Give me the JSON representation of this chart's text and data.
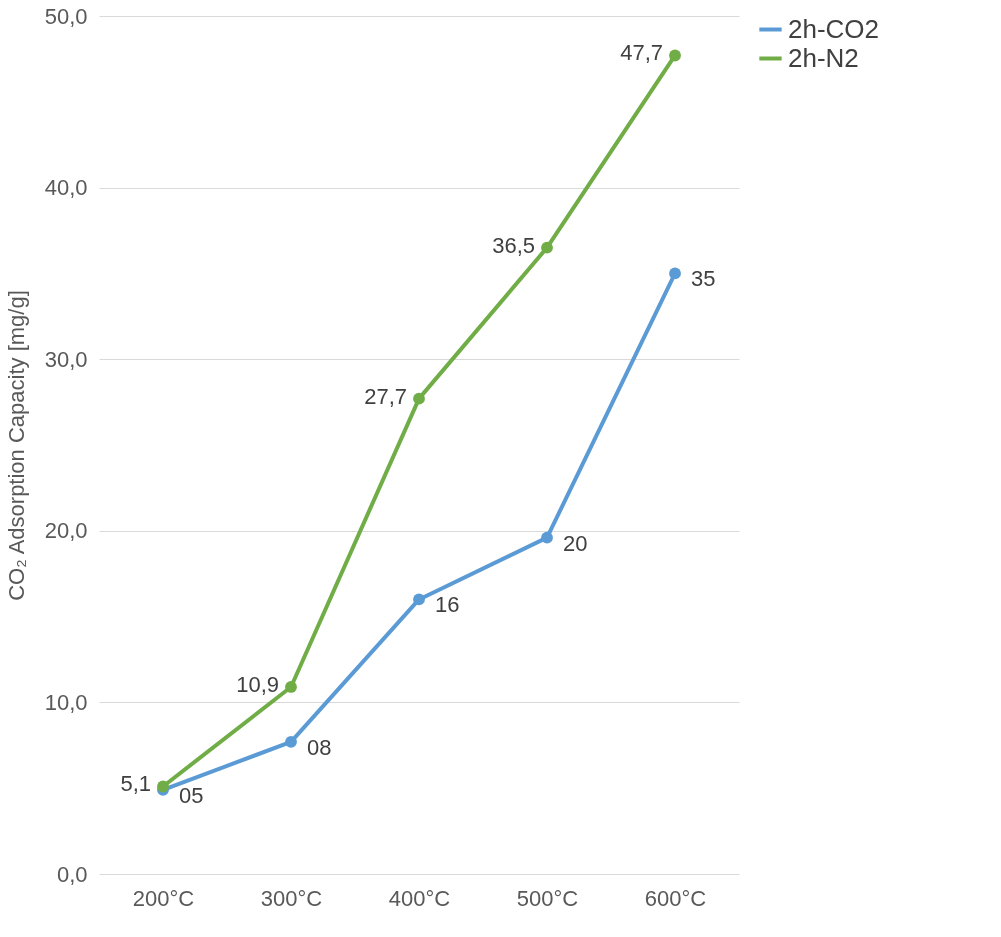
{
  "chart_data": {
    "type": "line",
    "ylabel": "CO₂ Adsorption Capacity [mg/g]",
    "categories": [
      "200°C",
      "300°C",
      "400°C",
      "500°C",
      "600°C"
    ],
    "series": [
      {
        "name": "2h-CO2",
        "color": "#5b9bd5",
        "values": [
          4.9,
          7.7,
          16.0,
          19.6,
          35.0
        ],
        "value_labels": [
          "05",
          "08",
          "16",
          "20",
          "35"
        ]
      },
      {
        "name": "2h-N2",
        "color": "#70ad47",
        "values": [
          5.1,
          10.9,
          27.7,
          36.5,
          47.7
        ],
        "value_labels": [
          "5,1",
          "10,9",
          "27,7",
          "36,5",
          "47,7"
        ]
      }
    ],
    "ylim": [
      0,
      50
    ],
    "yticks": [
      {
        "value": 0,
        "label": "0,0"
      },
      {
        "value": 10,
        "label": "10,0"
      },
      {
        "value": 20,
        "label": "20,0"
      },
      {
        "value": 30,
        "label": "30,0"
      },
      {
        "value": 40,
        "label": "40,0"
      },
      {
        "value": 50,
        "label": "50,0"
      }
    ],
    "grid": "y",
    "legend": "right",
    "marker": "circle",
    "line_style": "solid"
  }
}
